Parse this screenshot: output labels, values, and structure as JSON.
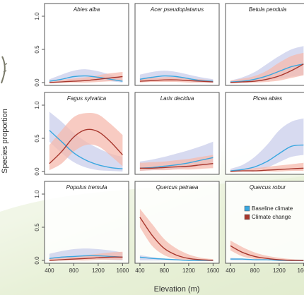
{
  "chart_data": {
    "type": "line",
    "xlabel": "Elevation (m)",
    "ylabel": "Species proportion",
    "xticks": [
      400,
      800,
      1200,
      1600
    ],
    "xlim": [
      320,
      1700
    ],
    "yticks": [
      0.0,
      0.5,
      1.0
    ],
    "ylim": [
      0,
      1
    ],
    "legend": {
      "position": "right",
      "entries": [
        "Baseline climate",
        "Climate change"
      ]
    },
    "colors": {
      "baseline": "#3aa7e0",
      "baseline_band": "#c9cdeb",
      "change": "#a8372d",
      "change_band": "#f6b9ad"
    },
    "x": [
      400,
      600,
      800,
      1000,
      1200,
      1400,
      1600
    ],
    "panels": [
      {
        "title": "Abies alba",
        "series": [
          {
            "key": "baseline",
            "values": [
              0.02,
              0.05,
              0.09,
              0.1,
              0.08,
              0.05,
              0.02
            ],
            "band": [
              [
                0.0,
                0.05
              ],
              [
                0.01,
                0.12
              ],
              [
                0.03,
                0.18
              ],
              [
                0.04,
                0.2
              ],
              [
                0.03,
                0.17
              ],
              [
                0.02,
                0.12
              ],
              [
                0.0,
                0.06
              ]
            ]
          },
          {
            "key": "change",
            "values": [
              0.0,
              0.01,
              0.02,
              0.03,
              0.05,
              0.07,
              0.09
            ],
            "band": [
              [
                0.0,
                0.02
              ],
              [
                0.0,
                0.04
              ],
              [
                0.0,
                0.06
              ],
              [
                0.0,
                0.08
              ],
              [
                0.01,
                0.11
              ],
              [
                0.02,
                0.14
              ],
              [
                0.03,
                0.16
              ]
            ]
          }
        ]
      },
      {
        "title": "Acer pseudoplatanus",
        "series": [
          {
            "key": "baseline",
            "values": [
              0.05,
              0.08,
              0.1,
              0.09,
              0.06,
              0.03,
              0.02
            ],
            "band": [
              [
                0.01,
                0.12
              ],
              [
                0.03,
                0.16
              ],
              [
                0.05,
                0.18
              ],
              [
                0.04,
                0.16
              ],
              [
                0.02,
                0.12
              ],
              [
                0.0,
                0.08
              ],
              [
                0.0,
                0.05
              ]
            ]
          },
          {
            "key": "change",
            "values": [
              0.02,
              0.03,
              0.04,
              0.04,
              0.03,
              0.02,
              0.01
            ],
            "band": [
              [
                0.0,
                0.06
              ],
              [
                0.01,
                0.07
              ],
              [
                0.01,
                0.08
              ],
              [
                0.01,
                0.08
              ],
              [
                0.0,
                0.06
              ],
              [
                0.0,
                0.05
              ],
              [
                0.0,
                0.03
              ]
            ]
          }
        ]
      },
      {
        "title": "Betula pendula",
        "series": [
          {
            "key": "baseline",
            "values": [
              0.01,
              0.02,
              0.05,
              0.1,
              0.17,
              0.24,
              0.28
            ],
            "band": [
              [
                0.0,
                0.03
              ],
              [
                0.0,
                0.08
              ],
              [
                0.01,
                0.16
              ],
              [
                0.03,
                0.28
              ],
              [
                0.06,
                0.4
              ],
              [
                0.09,
                0.5
              ],
              [
                0.12,
                0.55
              ]
            ]
          },
          {
            "key": "change",
            "values": [
              0.0,
              0.01,
              0.02,
              0.05,
              0.1,
              0.18,
              0.28
            ],
            "band": [
              [
                0.0,
                0.03
              ],
              [
                0.0,
                0.06
              ],
              [
                0.0,
                0.1
              ],
              [
                0.01,
                0.18
              ],
              [
                0.03,
                0.3
              ],
              [
                0.07,
                0.4
              ],
              [
                0.11,
                0.45
              ]
            ]
          }
        ]
      },
      {
        "title": "Fagus sylvatica",
        "series": [
          {
            "key": "baseline",
            "values": [
              0.62,
              0.45,
              0.28,
              0.17,
              0.1,
              0.06,
              0.04
            ],
            "band": [
              [
                0.45,
                0.9
              ],
              [
                0.28,
                0.75
              ],
              [
                0.14,
                0.58
              ],
              [
                0.06,
                0.45
              ],
              [
                0.02,
                0.35
              ],
              [
                0.01,
                0.27
              ],
              [
                0.0,
                0.22
              ]
            ]
          },
          {
            "key": "change",
            "values": [
              0.12,
              0.3,
              0.52,
              0.63,
              0.6,
              0.45,
              0.25
            ],
            "band": [
              [
                0.02,
                0.4
              ],
              [
                0.12,
                0.62
              ],
              [
                0.3,
                0.82
              ],
              [
                0.4,
                0.88
              ],
              [
                0.38,
                0.86
              ],
              [
                0.24,
                0.72
              ],
              [
                0.08,
                0.55
              ]
            ]
          }
        ]
      },
      {
        "title": "Larix decidua",
        "series": [
          {
            "key": "baseline",
            "values": [
              0.05,
              0.06,
              0.08,
              0.1,
              0.13,
              0.17,
              0.21
            ],
            "band": [
              [
                0.01,
                0.15
              ],
              [
                0.02,
                0.18
              ],
              [
                0.03,
                0.22
              ],
              [
                0.04,
                0.27
              ],
              [
                0.06,
                0.32
              ],
              [
                0.08,
                0.38
              ],
              [
                0.1,
                0.45
              ]
            ]
          },
          {
            "key": "change",
            "values": [
              0.05,
              0.05,
              0.06,
              0.07,
              0.08,
              0.1,
              0.12
            ],
            "band": [
              [
                0.01,
                0.13
              ],
              [
                0.02,
                0.14
              ],
              [
                0.02,
                0.15
              ],
              [
                0.03,
                0.17
              ],
              [
                0.03,
                0.19
              ],
              [
                0.04,
                0.22
              ],
              [
                0.05,
                0.25
              ]
            ]
          }
        ]
      },
      {
        "title": "Picea abies",
        "series": [
          {
            "key": "baseline",
            "values": [
              0.01,
              0.03,
              0.07,
              0.15,
              0.27,
              0.38,
              0.4
            ],
            "band": [
              [
                0.0,
                0.04
              ],
              [
                0.0,
                0.1
              ],
              [
                0.02,
                0.22
              ],
              [
                0.06,
                0.4
              ],
              [
                0.14,
                0.62
              ],
              [
                0.22,
                0.75
              ],
              [
                0.25,
                0.8
              ]
            ]
          },
          {
            "key": "change",
            "values": [
              0.0,
              0.01,
              0.01,
              0.02,
              0.03,
              0.04,
              0.05
            ],
            "band": [
              [
                0.0,
                0.02
              ],
              [
                0.0,
                0.03
              ],
              [
                0.0,
                0.05
              ],
              [
                0.0,
                0.07
              ],
              [
                0.0,
                0.09
              ],
              [
                0.01,
                0.11
              ],
              [
                0.01,
                0.13
              ]
            ]
          }
        ]
      },
      {
        "title": "Populus tremula",
        "series": [
          {
            "key": "baseline",
            "values": [
              0.03,
              0.05,
              0.06,
              0.07,
              0.07,
              0.06,
              0.05
            ],
            "band": [
              [
                0.0,
                0.1
              ],
              [
                0.01,
                0.14
              ],
              [
                0.01,
                0.17
              ],
              [
                0.02,
                0.18
              ],
              [
                0.02,
                0.17
              ],
              [
                0.01,
                0.15
              ],
              [
                0.0,
                0.12
              ]
            ]
          },
          {
            "key": "change",
            "values": [
              0.0,
              0.01,
              0.02,
              0.03,
              0.04,
              0.05,
              0.05
            ],
            "band": [
              [
                0.0,
                0.03
              ],
              [
                0.0,
                0.04
              ],
              [
                0.0,
                0.06
              ],
              [
                0.0,
                0.08
              ],
              [
                0.01,
                0.1
              ],
              [
                0.01,
                0.12
              ],
              [
                0.01,
                0.13
              ]
            ]
          }
        ]
      },
      {
        "title": "Quercus petraea",
        "series": [
          {
            "key": "baseline",
            "values": [
              0.05,
              0.03,
              0.02,
              0.01,
              0.0,
              0.0,
              0.0
            ],
            "band": [
              [
                0.0,
                0.08
              ],
              [
                0.0,
                0.05
              ],
              [
                0.0,
                0.03
              ],
              [
                0.0,
                0.02
              ],
              [
                0.0,
                0.01
              ],
              [
                0.0,
                0.01
              ],
              [
                0.0,
                0.01
              ]
            ]
          },
          {
            "key": "change",
            "values": [
              0.65,
              0.38,
              0.18,
              0.08,
              0.03,
              0.01,
              0.0
            ],
            "band": [
              [
                0.5,
                0.78
              ],
              [
                0.22,
                0.55
              ],
              [
                0.08,
                0.32
              ],
              [
                0.02,
                0.18
              ],
              [
                0.0,
                0.09
              ],
              [
                0.0,
                0.04
              ],
              [
                0.0,
                0.02
              ]
            ]
          }
        ]
      },
      {
        "title": "Quercus robur",
        "series": [
          {
            "key": "baseline",
            "values": [
              0.02,
              0.02,
              0.01,
              0.01,
              0.0,
              0.0,
              0.0
            ],
            "band": [
              [
                0.0,
                0.04
              ],
              [
                0.0,
                0.03
              ],
              [
                0.0,
                0.02
              ],
              [
                0.0,
                0.02
              ],
              [
                0.0,
                0.01
              ],
              [
                0.0,
                0.01
              ],
              [
                0.0,
                0.01
              ]
            ]
          },
          {
            "key": "change",
            "values": [
              0.22,
              0.12,
              0.06,
              0.03,
              0.01,
              0.0,
              0.0
            ],
            "band": [
              [
                0.15,
                0.3
              ],
              [
                0.06,
                0.2
              ],
              [
                0.02,
                0.12
              ],
              [
                0.0,
                0.07
              ],
              [
                0.0,
                0.04
              ],
              [
                0.0,
                0.02
              ],
              [
                0.0,
                0.01
              ]
            ]
          }
        ]
      }
    ]
  }
}
